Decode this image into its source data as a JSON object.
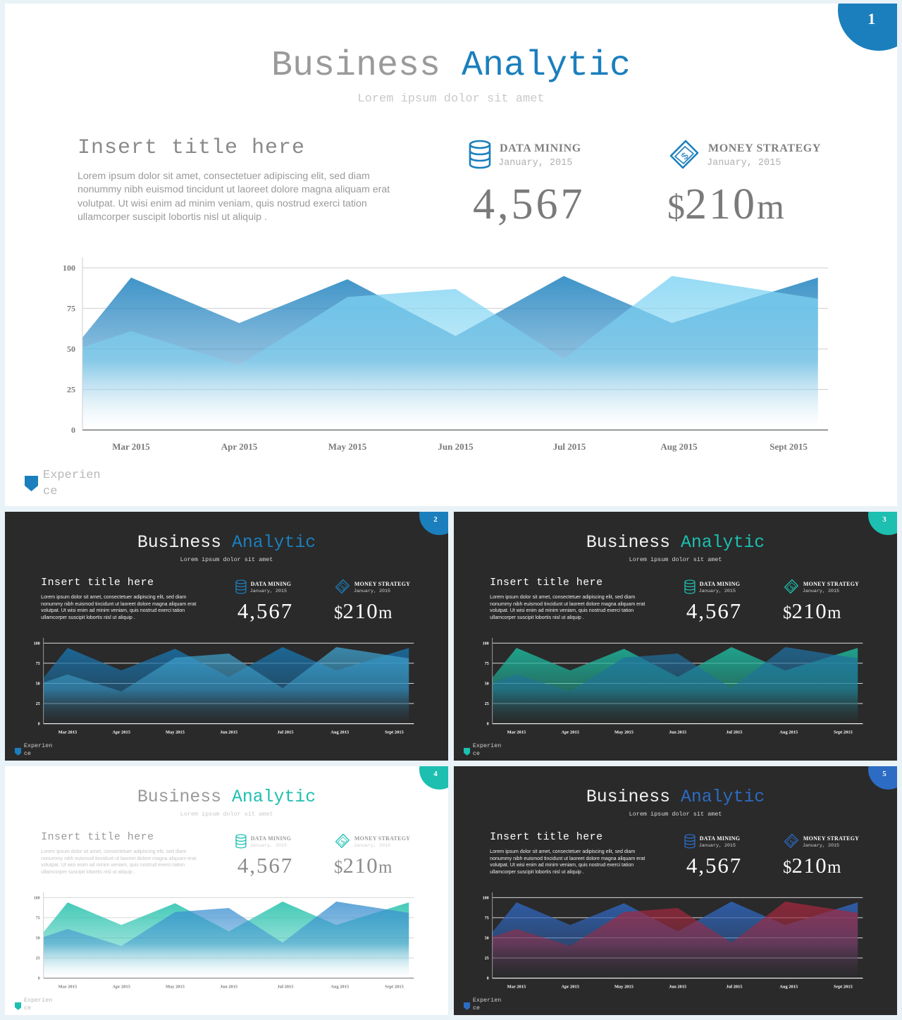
{
  "slide": {
    "title_part1": "Business ",
    "title_part2": "Analytic",
    "subtitle": "Lorem ipsum dolor sit amet",
    "insert_title": "Insert title here",
    "body_text": "Lorem ipsum dolor sit amet, consectetuer adipiscing elit, sed diam nonummy  nibh euismod tincidunt ut laoreet dolore magna aliquam erat volutpat. Ut wisi enim ad minim veniam, quis nostrud exerci tation ullamcorper suscipit lobortis nisl ut aliquip .",
    "stat1": {
      "label": "DATA MINING",
      "date": "January, 2015",
      "value": "4,567",
      "icon": "database-icon"
    },
    "stat2": {
      "label": "MONEY STRATEGY",
      "date": "January, 2015",
      "value_prefix": "$",
      "value_number": "210",
      "value_suffix": "m",
      "icon": "money-bill-icon"
    },
    "brand": {
      "line1": "Experien",
      "line2": "ce"
    }
  },
  "slides": [
    {
      "number": "1",
      "theme": "light",
      "accent": "#1b7fbd",
      "series_colors": [
        "#2a88c2",
        "#7dd3f2"
      ]
    },
    {
      "number": "2",
      "theme": "dark",
      "accent": "#1b7fbd",
      "series_colors": [
        "#1a6fa4",
        "#3ea0cc"
      ]
    },
    {
      "number": "3",
      "theme": "dark",
      "accent": "#1dbfb0",
      "series_colors": [
        "#1eb39a",
        "#1f6f9f"
      ]
    },
    {
      "number": "4",
      "theme": "light",
      "accent": "#1dbfb0",
      "series_colors": [
        "#2fc4b0",
        "#3a8fd0"
      ]
    },
    {
      "number": "5",
      "theme": "dark",
      "accent": "#2c6cc4",
      "series_colors": [
        "#2f63b6",
        "#a3283e"
      ]
    }
  ],
  "chart_data": {
    "type": "area",
    "categories": [
      "Mar 2015",
      "Apr 2015",
      "May 2015",
      "Jun 2015",
      "Jul 2015",
      "Aug 2015",
      "Sept 2015"
    ],
    "x_positions": [
      0,
      1,
      2,
      3,
      4,
      5,
      6
    ],
    "series": [
      {
        "x": [
          -0.45,
          0,
          1,
          2,
          3,
          4,
          5,
          6.35
        ],
        "values": [
          57,
          94,
          66,
          93,
          58,
          95,
          66,
          94
        ]
      },
      {
        "x": [
          -0.45,
          0,
          1,
          2,
          3,
          4,
          5,
          6.35
        ],
        "values": [
          51,
          61,
          40,
          82,
          87,
          44,
          95,
          81
        ]
      }
    ],
    "yticks": [
      0,
      25,
      50,
      75,
      100
    ],
    "ylim": [
      0,
      100
    ],
    "grid": true
  }
}
